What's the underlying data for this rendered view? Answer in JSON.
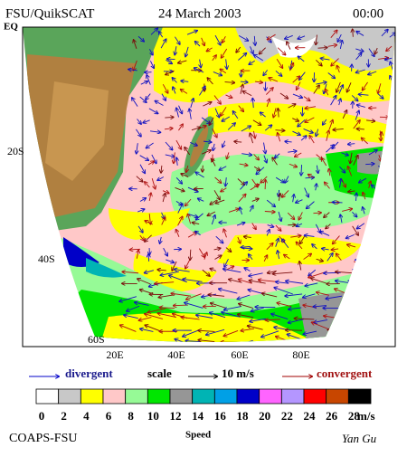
{
  "header": {
    "source": "FSU/QuikSCAT",
    "date": "24 March 2003",
    "time": "00:00"
  },
  "map": {
    "lat_labels": [
      "EQ",
      "20S",
      "40S",
      "60S"
    ],
    "lon_labels": [
      "20E",
      "40E",
      "60E",
      "80E"
    ]
  },
  "legend": {
    "divergent": "divergent",
    "scale": "scale",
    "scale_value": "10 m/s",
    "convergent": "convergent"
  },
  "colorbar": {
    "title": "Speed",
    "unit": "m/s",
    "ticks": [
      0,
      2,
      4,
      6,
      8,
      10,
      12,
      14,
      16,
      18,
      20,
      22,
      24,
      26,
      28
    ],
    "colors": [
      "#ffffff",
      "#c8c8c8",
      "#ffff00",
      "#ffc8c8",
      "#96fa96",
      "#00e600",
      "#969696",
      "#00b4b4",
      "#00a0e6",
      "#0000c8",
      "#ff64ff",
      "#b496ff",
      "#ff0000",
      "#c84600",
      "#000000"
    ]
  },
  "footer": {
    "org": "COAPS-FSU",
    "author": "Yan Gu"
  }
}
